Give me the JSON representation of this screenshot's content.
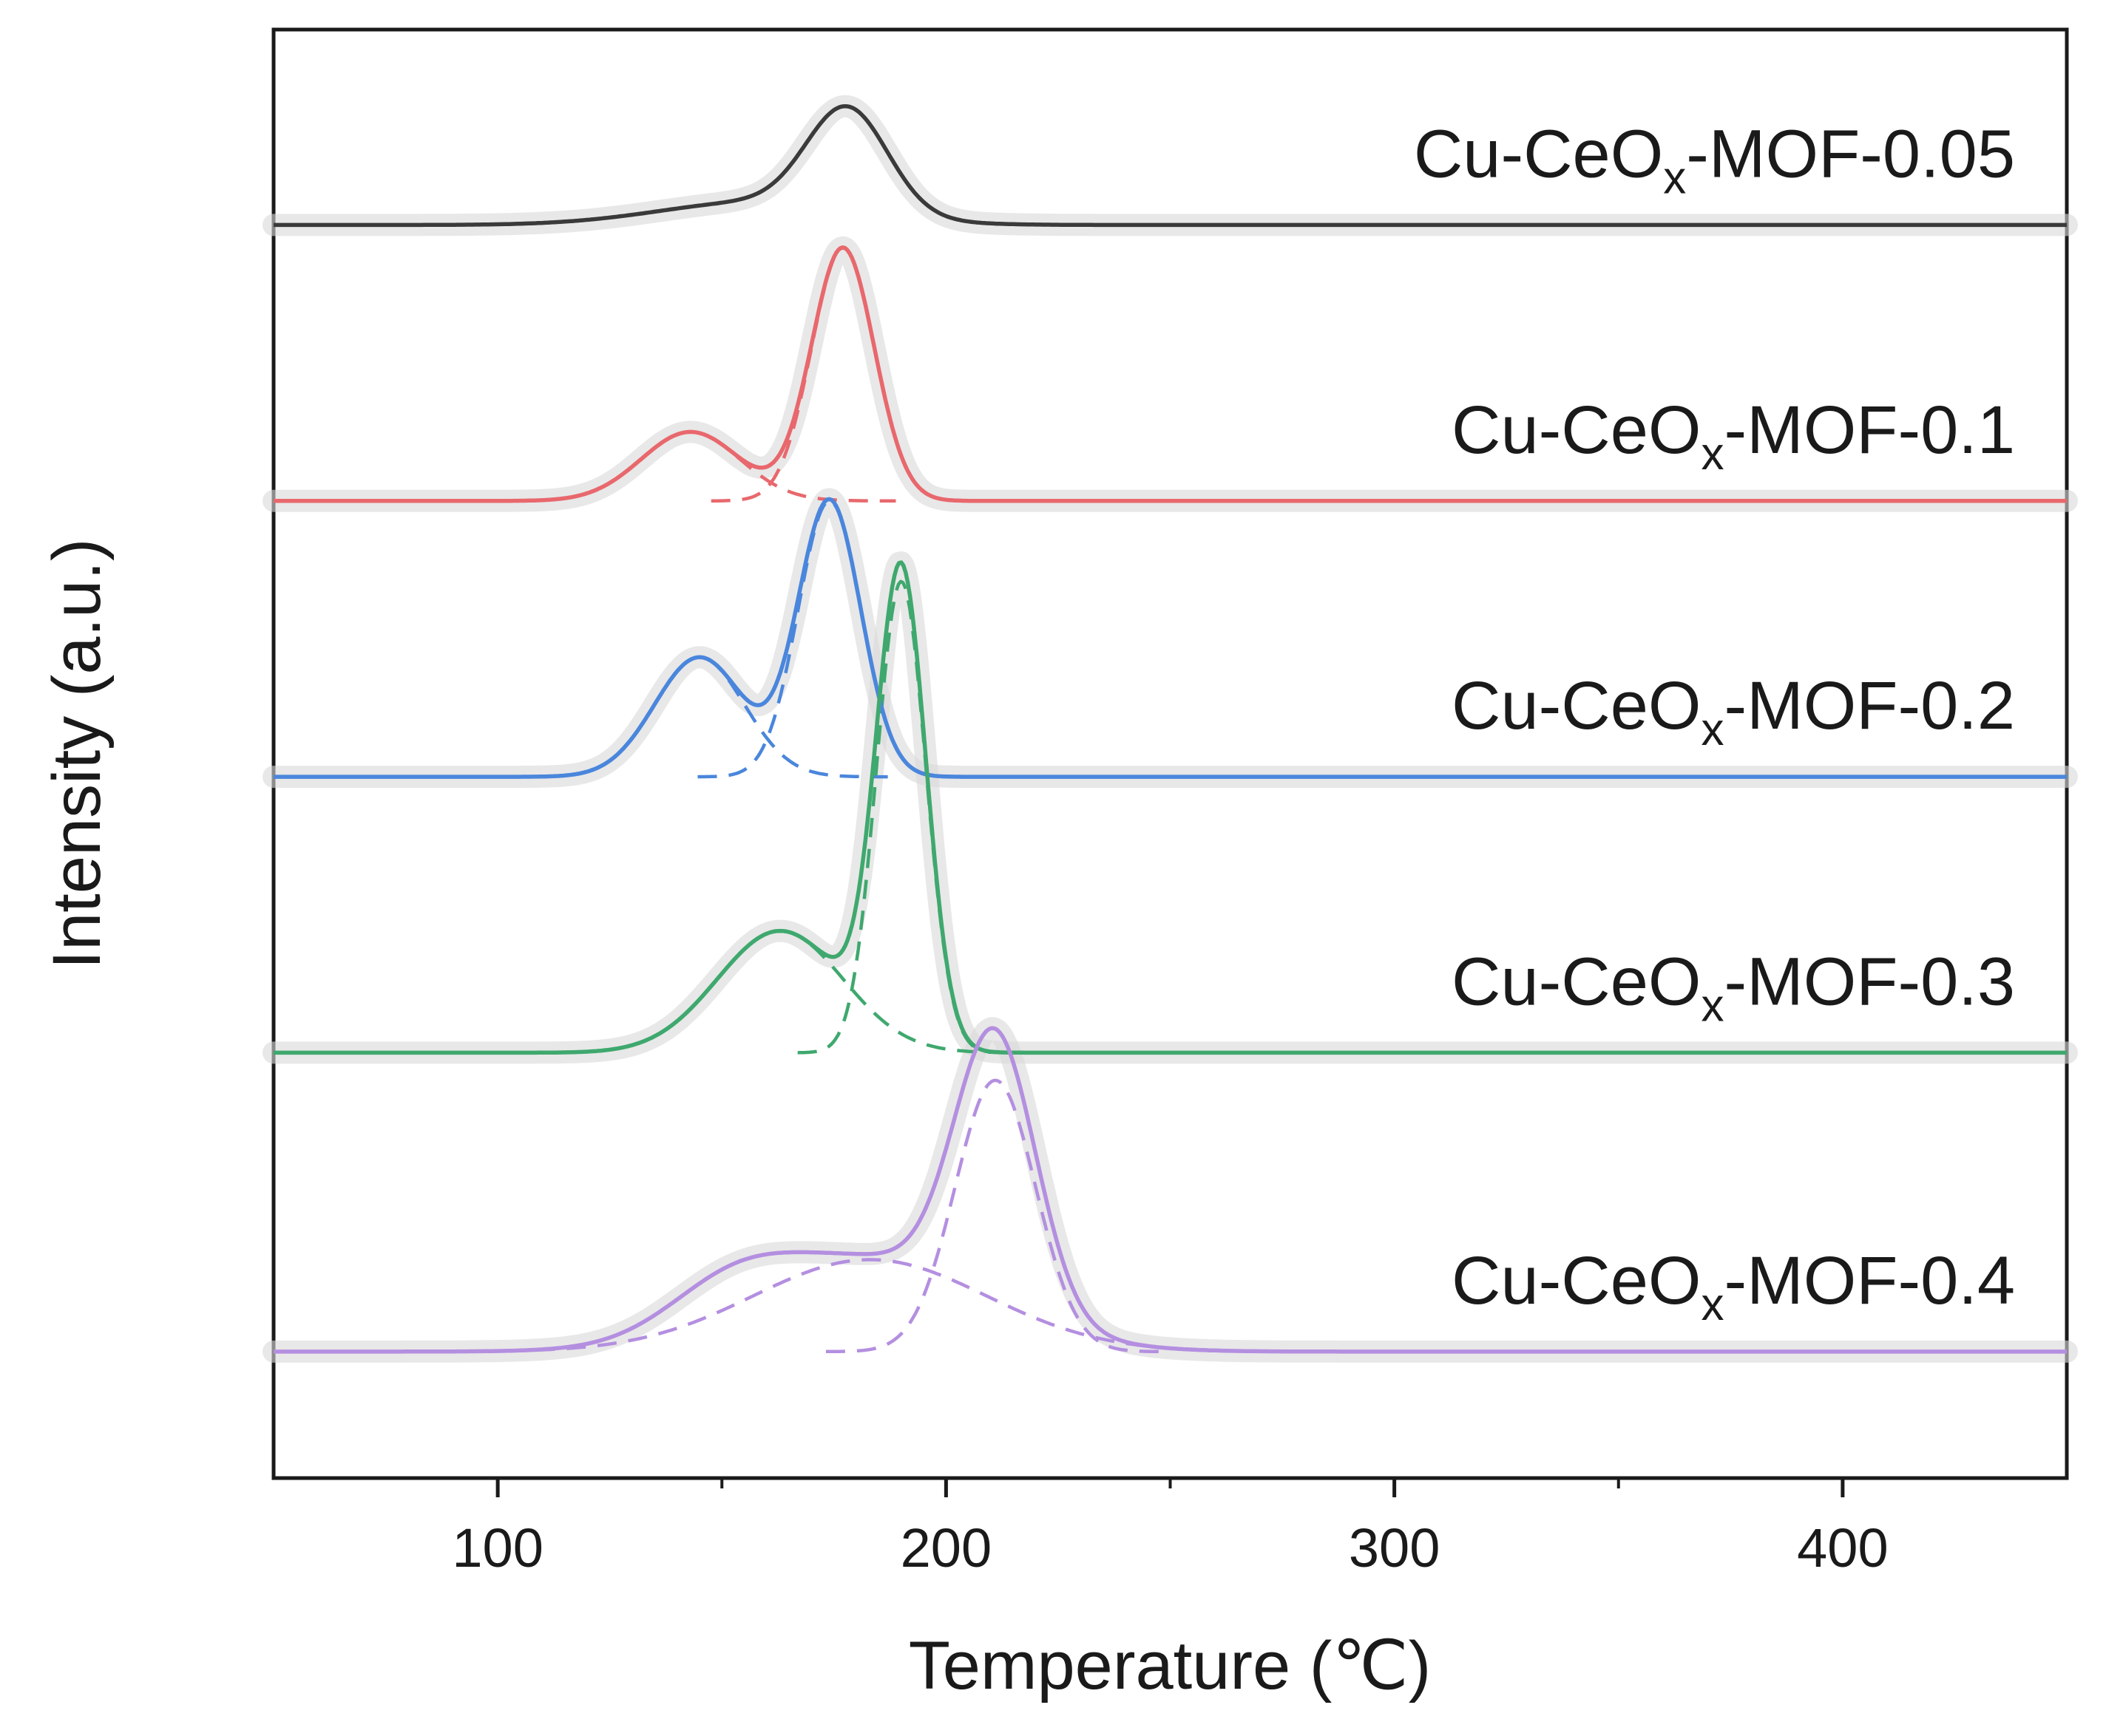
{
  "chart_data": {
    "type": "line",
    "xlabel": "Temperature (℃)",
    "ylabel": "Intensity (a.u.)",
    "xlim": [
      50,
      450
    ],
    "ylim": [
      -0.55,
      5.75
    ],
    "xticks": [
      100,
      200,
      300,
      400
    ],
    "x_minor_ticks": [
      150,
      250,
      350
    ],
    "yticks": [],
    "legend_placement": "inline labels, right side above each curve",
    "colors": {
      "Cu-CeOx-MOF-0.05": "#3a3a3a",
      "Cu-CeOx-MOF-0.1": "#e8686d",
      "Cu-CeOx-MOF-0.2": "#4a86dc",
      "Cu-CeOx-MOF-0.3": "#3fa86e",
      "Cu-CeOx-MOF-0.4": "#b48fe0",
      "halo": "#d9d9d9"
    },
    "series": [
      {
        "name": "Cu-CeOx-MOF-0.05",
        "label_main": "Cu-CeO",
        "label_sub": "x",
        "label_tail": "-MOF-0.05",
        "baseline": 4.9,
        "style": "solid",
        "peaks": [
          {
            "center": 178,
            "height": 0.45,
            "width": 9
          },
          {
            "center": 158,
            "height": 0.1,
            "width": 22
          }
        ],
        "fitted_components": []
      },
      {
        "name": "Cu-CeOx-MOF-0.1",
        "label_main": "Cu-CeO",
        "label_sub": "x",
        "label_tail": "-MOF-0.1",
        "baseline": 3.7,
        "style": "solid",
        "peaks": [
          {
            "center": 177,
            "height": 1.1,
            "width": 7
          },
          {
            "center": 143,
            "height": 0.3,
            "width": 11
          }
        ],
        "fitted_components": [
          {
            "center": 177,
            "height": 1.1,
            "width": 7,
            "style": "dashed"
          },
          {
            "center": 143,
            "height": 0.3,
            "width": 11,
            "style": "dashed"
          }
        ]
      },
      {
        "name": "Cu-CeOx-MOF-0.2",
        "label_main": "Cu-CeO",
        "label_sub": "x",
        "label_tail": "-MOF-0.2",
        "baseline": 2.5,
        "style": "solid",
        "peaks": [
          {
            "center": 174,
            "height": 1.2,
            "width": 7
          },
          {
            "center": 145,
            "height": 0.52,
            "width": 10
          }
        ],
        "fitted_components": [
          {
            "center": 174,
            "height": 1.2,
            "width": 7,
            "style": "dashed"
          },
          {
            "center": 145,
            "height": 0.52,
            "width": 10,
            "style": "dashed"
          }
        ]
      },
      {
        "name": "Cu-CeOx-MOF-0.3",
        "label_main": "Cu-CeO",
        "label_sub": "x",
        "label_tail": "-MOF-0.3",
        "baseline": 1.3,
        "style": "solid",
        "peaks": [
          {
            "center": 190,
            "height": 2.05,
            "width": 5.5
          },
          {
            "center": 163,
            "height": 0.53,
            "width": 14
          }
        ],
        "fitted_components": [
          {
            "center": 190,
            "height": 2.05,
            "width": 5.5,
            "style": "dashed"
          },
          {
            "center": 163,
            "height": 0.53,
            "width": 14,
            "style": "dashed"
          }
        ]
      },
      {
        "name": "Cu-CeOx-MOF-0.4",
        "label_main": "Cu-CeO",
        "label_sub": "x",
        "label_tail": "-MOF-0.4",
        "baseline": 0.0,
        "style": "solid",
        "peaks": [
          {
            "center": 211,
            "height": 1.18,
            "width": 9
          },
          {
            "center": 183,
            "height": 0.4,
            "width": 26
          },
          {
            "center": 152,
            "height": 0.18,
            "width": 14
          }
        ],
        "fitted_components": [
          {
            "center": 211,
            "height": 1.18,
            "width": 9,
            "style": "dashed"
          },
          {
            "center": 183,
            "height": 0.4,
            "width": 26,
            "style": "dashed"
          }
        ]
      }
    ]
  }
}
